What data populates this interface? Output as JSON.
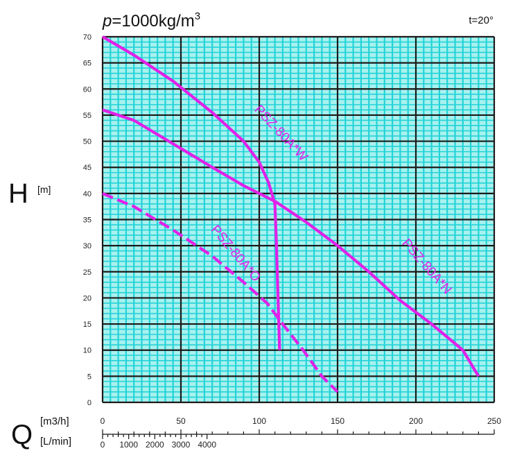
{
  "chart_data": {
    "type": "line",
    "title_prefix": "p",
    "title_value": "=1000kg/m",
    "title_exponent": "3",
    "temperature": "t=20°",
    "ylabel": "H",
    "yunit": "[m]",
    "xlabel": "Q",
    "xunit_primary": "[m3/h]",
    "xunit_secondary": "[L/min]",
    "xlim": [
      0,
      250
    ],
    "ylim": [
      0,
      70
    ],
    "xticks": [
      0,
      50,
      100,
      150,
      200,
      250
    ],
    "yticks": [
      0,
      5,
      10,
      15,
      20,
      25,
      30,
      35,
      40,
      45,
      50,
      55,
      60,
      65,
      70
    ],
    "secondary_xticks": [
      0,
      1000,
      2000,
      3000,
      4000
    ],
    "grid": true,
    "series": [
      {
        "name": "PSZ-80A*W",
        "style": "solid",
        "points": [
          [
            0,
            70
          ],
          [
            20,
            66.5
          ],
          [
            45,
            61.5
          ],
          [
            70,
            55.5
          ],
          [
            90,
            50
          ],
          [
            100,
            46
          ],
          [
            106,
            42
          ],
          [
            110,
            38
          ],
          [
            111,
            30
          ],
          [
            112,
            20
          ],
          [
            113,
            10
          ]
        ]
      },
      {
        "name": "PSZ-80A*N",
        "style": "solid",
        "points": [
          [
            0,
            56
          ],
          [
            20,
            54
          ],
          [
            45,
            49.5
          ],
          [
            70,
            45
          ],
          [
            90,
            41.5
          ],
          [
            110,
            38.5
          ],
          [
            130,
            34.5
          ],
          [
            150,
            30
          ],
          [
            170,
            25
          ],
          [
            190,
            19.5
          ],
          [
            210,
            15
          ],
          [
            230,
            10
          ],
          [
            240,
            5
          ]
        ]
      },
      {
        "name": "PSZ-80A*O",
        "style": "dashed",
        "points": [
          [
            0,
            40
          ],
          [
            20,
            37.5
          ],
          [
            45,
            33
          ],
          [
            70,
            28
          ],
          [
            90,
            23
          ],
          [
            105,
            19
          ],
          [
            115,
            15
          ],
          [
            128,
            10
          ],
          [
            140,
            5
          ],
          [
            150,
            2
          ]
        ]
      }
    ],
    "colors": {
      "curve": "#e021e8",
      "grid_minor": "#22d3d8",
      "grid_major": "#1a1a1a",
      "background": "#a8f1ee"
    }
  }
}
